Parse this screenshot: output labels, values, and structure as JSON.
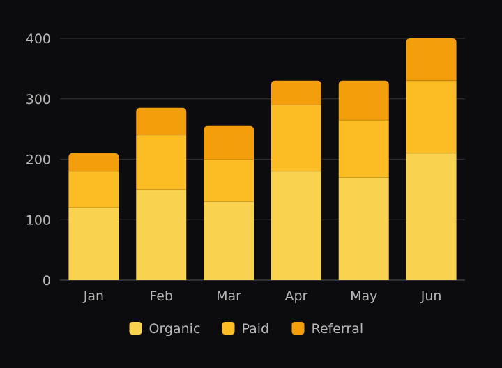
{
  "chart_data": {
    "type": "bar",
    "stacked": true,
    "categories": [
      "Jan",
      "Feb",
      "Mar",
      "Apr",
      "May",
      "Jun"
    ],
    "series": [
      {
        "name": "Organic",
        "color": "#f9d34f",
        "values": [
          120,
          150,
          130,
          180,
          170,
          210
        ]
      },
      {
        "name": "Paid",
        "color": "#fbbd23",
        "values": [
          60,
          90,
          70,
          110,
          95,
          120
        ]
      },
      {
        "name": "Referral",
        "color": "#f59e0b",
        "values": [
          30,
          45,
          55,
          40,
          65,
          70
        ]
      }
    ],
    "title": "",
    "xlabel": "",
    "ylabel": "",
    "ylim": [
      0,
      400
    ],
    "yticks": [
      0,
      100,
      200,
      300,
      400
    ],
    "grid": true,
    "legend_position": "bottom"
  }
}
